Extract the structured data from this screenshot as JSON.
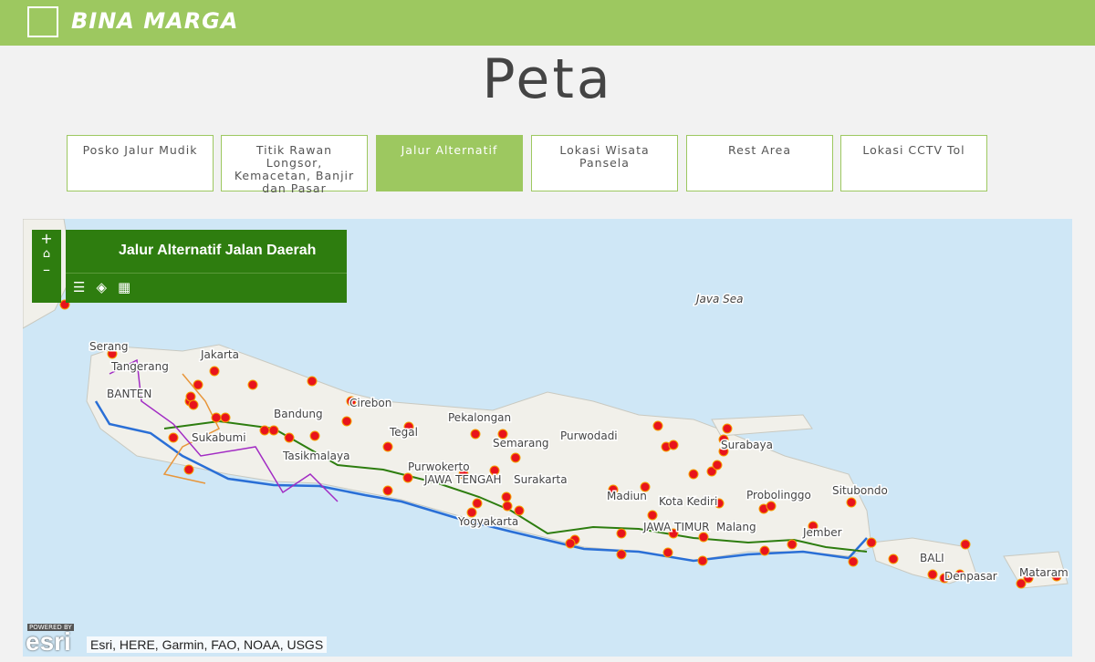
{
  "header": {
    "brand": "BINA MARGA"
  },
  "page_title": "Peta",
  "tabs": [
    "Posko Jalur Mudik",
    "Titik Rawan Longsor, Kemacetan, Banjir dan Pasar",
    "Jalur Alternatif",
    "Lokasi Wisata Pansela",
    "Rest Area",
    "Lokasi CCTV Tol"
  ],
  "map": {
    "panel_title": "Jalur Alternatif Jalan Daerah",
    "zoom_in": "+",
    "zoom_out": "–",
    "labels": [
      "Java Sea",
      "Serang",
      "Tangerang",
      "Jakarta",
      "BANTEN",
      "Bandung",
      "Sukabumi",
      "Tasikmalaya",
      "Cirebon",
      "Tegal",
      "Pekalongan",
      "Semarang",
      "Purwodadi",
      "Purwokerto",
      "JAWA TENGAH",
      "Surakarta",
      "Yogyakarta",
      "Madiun",
      "Kota Kediri",
      "Surabaya",
      "Probolinggo",
      "Situbondo",
      "Malang",
      "JAWA TIMUR",
      "Jember",
      "BALI",
      "Denpasar",
      "Mataram"
    ],
    "powered_by": "POWERED BY",
    "esri_logo": "esri",
    "attribution": "Esri, HERE, Garmin, FAO, NOAA, USGS"
  }
}
